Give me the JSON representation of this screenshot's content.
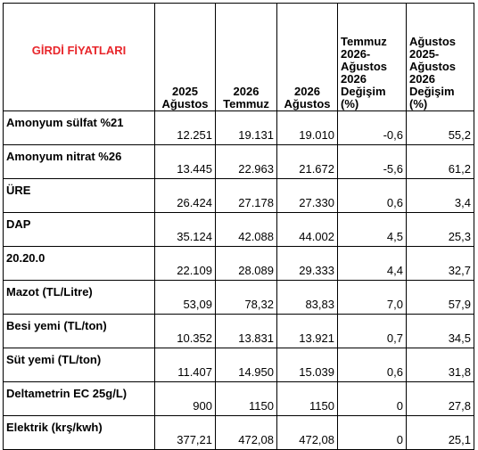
{
  "table": {
    "title": "GİRDİ FİYATLARI",
    "columns": [
      "2025\nAğustos",
      "2026\nTemmuz",
      "2026\nAğustos",
      "Temmuz\n2026-\nAğustos\n2026\nDeğişim\n(%)",
      "Ağustos\n2025-\nAğustos\n2026\nDeğişim\n(%)"
    ],
    "rows": [
      [
        "Amonyum sülfat %21",
        "12.251",
        "19.131",
        "19.010",
        "-0,6",
        "55,2"
      ],
      [
        "Amonyum nitrat %26",
        "13.445",
        "22.963",
        "21.672",
        "-5,6",
        "61,2"
      ],
      [
        "ÜRE",
        "26.424",
        "27.178",
        "27.330",
        "0,6",
        "3,4"
      ],
      [
        "DAP",
        "35.124",
        "42.088",
        "44.002",
        "4,5",
        "25,3"
      ],
      [
        "20.20.0",
        "22.109",
        "28.089",
        "29.333",
        "4,4",
        "32,7"
      ],
      [
        "Mazot (TL/Litre)",
        "53,09",
        "78,32",
        "83,83",
        "7,0",
        "57,9"
      ],
      [
        "Besi yemi (TL/ton)",
        "10.352",
        "13.831",
        "13.921",
        "0,7",
        "34,5"
      ],
      [
        "Süt yemi (TL/ton)",
        "11.407",
        "14.950",
        "15.039",
        "0,6",
        "31,8"
      ],
      [
        "Deltametrin EC 25g/L)",
        "900",
        "1150",
        "1150",
        "0",
        "27,8"
      ],
      [
        "Elektrik (krş/kwh)",
        "377,21",
        "472,08",
        "472,08",
        "0",
        "25,1"
      ]
    ]
  }
}
